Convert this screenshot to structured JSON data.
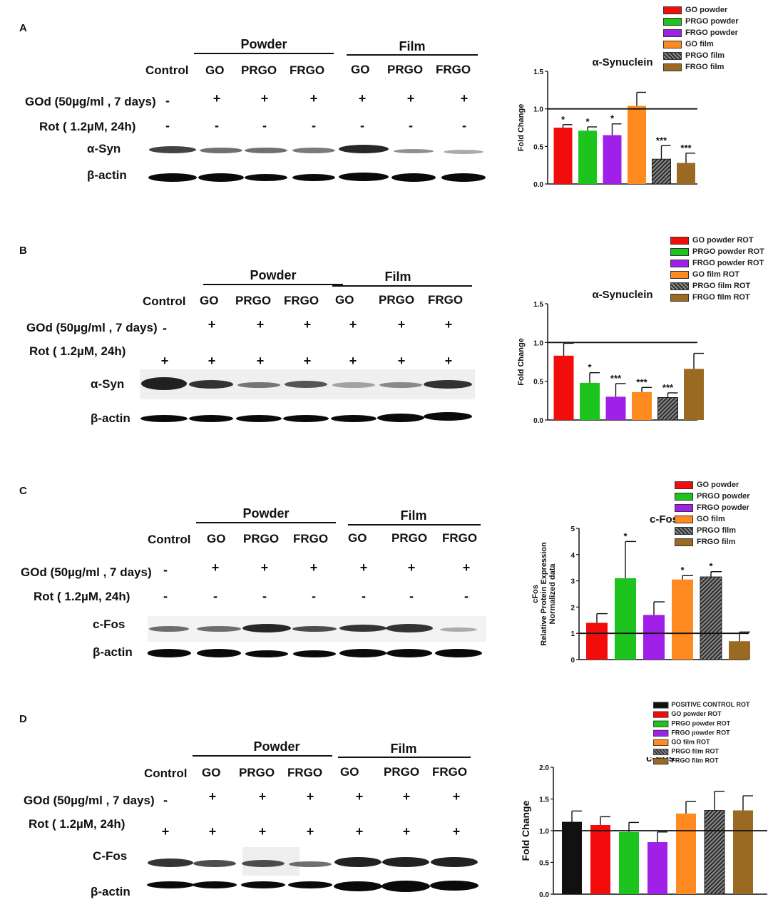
{
  "colors": {
    "red": "#f20c0c",
    "green": "#1ec41e",
    "purple": "#a020e8",
    "orange": "#ff8a1f",
    "dark": "#3a3a3a",
    "brown": "#9b6a22",
    "black": "#111111"
  },
  "panels": [
    {
      "letter": "A",
      "groups": {
        "powder": "Powder",
        "film": "Film"
      },
      "columns": [
        "Control",
        "GO",
        "PRGO",
        "FRGO",
        "GO",
        "PRGO",
        "FRGO"
      ],
      "conditions": [
        {
          "label": "GOd (50µg/ml , 7 days)",
          "signs": [
            "-",
            "+",
            "+",
            "+",
            "+",
            "+",
            "+"
          ]
        },
        {
          "label": "Rot ( 1.2µM, 24h)",
          "signs": [
            "-",
            "-",
            "-",
            "-",
            "-",
            "-",
            "-"
          ]
        }
      ],
      "blots": [
        "α-Syn",
        "β-actin"
      ],
      "legend": [
        {
          "label": "GO powder",
          "color": "red"
        },
        {
          "label": "PRGO powder",
          "color": "green"
        },
        {
          "label": "FRGO powder",
          "color": "purple"
        },
        {
          "label": "GO film",
          "color": "orange"
        },
        {
          "label": "PRGO film",
          "color": "dark"
        },
        {
          "label": "FRGO film",
          "color": "brown"
        }
      ]
    },
    {
      "letter": "B",
      "groups": {
        "powder": "Powder",
        "film": "Film"
      },
      "columns": [
        "Control",
        "GO",
        "PRGO",
        "FRGO",
        "GO",
        "PRGO",
        "FRGO"
      ],
      "conditions": [
        {
          "label": "GOd (50µg/ml , 7 days)",
          "signs": [
            "-",
            "+",
            "+",
            "+",
            "+",
            "+",
            "+"
          ]
        },
        {
          "label": "Rot ( 1.2µM, 24h)",
          "signs": [
            "+",
            "+",
            "+",
            "+",
            "+",
            "+",
            "+"
          ]
        }
      ],
      "blots": [
        "α-Syn",
        "β-actin"
      ],
      "legend": [
        {
          "label": "GO powder ROT",
          "color": "red"
        },
        {
          "label": "PRGO powder ROT",
          "color": "green"
        },
        {
          "label": "FRGO powder ROT",
          "color": "purple"
        },
        {
          "label": "GO film ROT",
          "color": "orange"
        },
        {
          "label": "PRGO film ROT",
          "color": "dark"
        },
        {
          "label": "FRGO film ROT",
          "color": "brown"
        }
      ]
    },
    {
      "letter": "C",
      "groups": {
        "powder": "Powder",
        "film": "Film"
      },
      "columns": [
        "Control",
        "GO",
        "PRGO",
        "FRGO",
        "GO",
        "PRGO",
        "FRGO"
      ],
      "conditions": [
        {
          "label": "GOd (50µg/ml , 7 days)",
          "signs": [
            "-",
            "+",
            "+",
            "+",
            "+",
            "+",
            "+"
          ]
        },
        {
          "label": "Rot ( 1.2µM, 24h)",
          "signs": [
            "-",
            "-",
            "-",
            "-",
            "-",
            "-",
            "-"
          ]
        }
      ],
      "blots": [
        "c-Fos",
        "β-actin"
      ],
      "legend": [
        {
          "label": "GO powder",
          "color": "red"
        },
        {
          "label": "PRGO powder",
          "color": "green"
        },
        {
          "label": "FRGO powder",
          "color": "purple"
        },
        {
          "label": "GO film",
          "color": "orange"
        },
        {
          "label": "PRGO film",
          "color": "dark"
        },
        {
          "label": "FRGO film",
          "color": "brown"
        }
      ]
    },
    {
      "letter": "D",
      "groups": {
        "powder": "Powder",
        "film": "Film"
      },
      "columns": [
        "Control",
        "GO",
        "PRGO",
        "FRGO",
        "GO",
        "PRGO",
        "FRGO"
      ],
      "conditions": [
        {
          "label": "GOd (50µg/ml , 7 days)",
          "signs": [
            "-",
            "+",
            "+",
            "+",
            "+",
            "+",
            "+"
          ]
        },
        {
          "label": "Rot ( 1.2µM, 24h)",
          "signs": [
            "+",
            "+",
            "+",
            "+",
            "+",
            "+",
            "+"
          ]
        }
      ],
      "blots": [
        "C-Fos",
        "β-actin"
      ],
      "legend": [
        {
          "label": "POSITIVE CONTROL  ROT",
          "color": "black"
        },
        {
          "label": "GO powder ROT",
          "color": "red"
        },
        {
          "label": "PRGO powder ROT",
          "color": "green"
        },
        {
          "label": "FRGO powder ROT",
          "color": "purple"
        },
        {
          "label": "GO film ROT",
          "color": "orange"
        },
        {
          "label": "PRGO film ROT",
          "color": "dark"
        },
        {
          "label": "FRGO film ROT",
          "color": "brown"
        }
      ]
    }
  ],
  "chart_data": [
    {
      "type": "bar",
      "title": "α-Synuclein",
      "ylabel": "Fold Change",
      "ylim": [
        0,
        1.5
      ],
      "yticks": [
        "0.0",
        "0.5",
        "1.0",
        "1.5"
      ],
      "reference_line": 1.0,
      "categories": [
        "GO powder",
        "PRGO powder",
        "FRGO powder",
        "GO film",
        "PRGO film",
        "FRGO film"
      ],
      "values": [
        0.75,
        0.71,
        0.65,
        1.04,
        0.33,
        0.28
      ],
      "errors": [
        0.04,
        0.05,
        0.15,
        0.18,
        0.18,
        0.13
      ],
      "significance": [
        "*",
        "*",
        "*",
        "",
        "***",
        "***"
      ],
      "colors": [
        "red",
        "green",
        "purple",
        "orange",
        "dark",
        "brown"
      ]
    },
    {
      "type": "bar",
      "title": "α-Synuclein",
      "ylabel": "Fold Change",
      "ylim": [
        0,
        1.5
      ],
      "yticks": [
        "0.0",
        "0.5",
        "1.0",
        "1.5"
      ],
      "reference_line": 1.0,
      "categories": [
        "GO powder ROT",
        "PRGO powder ROT",
        "FRGO powder ROT",
        "GO film ROT",
        "PRGO film ROT",
        "FRGO film ROT"
      ],
      "values": [
        0.83,
        0.48,
        0.3,
        0.36,
        0.29,
        0.66
      ],
      "errors": [
        0.16,
        0.13,
        0.17,
        0.06,
        0.06,
        0.2
      ],
      "significance": [
        "",
        "*",
        "***",
        "***",
        "***",
        ""
      ],
      "colors": [
        "red",
        "green",
        "purple",
        "orange",
        "dark",
        "brown"
      ]
    },
    {
      "type": "bar",
      "title": "c-Fos",
      "ylabel": "cFos\nRelative Protein Expression\nNormalized data",
      "ylim": [
        0,
        5
      ],
      "yticks": [
        "0",
        "1",
        "2",
        "3",
        "4",
        "5"
      ],
      "reference_line": 1.0,
      "categories": [
        "GO powder",
        "PRGO powder",
        "FRGO powder",
        "GO film",
        "PRGO film",
        "FRGO film"
      ],
      "values": [
        1.4,
        3.1,
        1.7,
        3.05,
        3.15,
        0.7
      ],
      "errors": [
        0.35,
        1.4,
        0.5,
        0.15,
        0.2,
        0.35
      ],
      "significance": [
        "",
        "*",
        "",
        "*",
        "*",
        ""
      ],
      "colors": [
        "red",
        "green",
        "purple",
        "orange",
        "dark",
        "brown"
      ]
    },
    {
      "type": "bar",
      "title": "c-Fos",
      "ylabel": "Fold Change",
      "ylim": [
        0,
        2.0
      ],
      "yticks": [
        "0.0",
        "0.5",
        "1.0",
        "1.5",
        "2.0"
      ],
      "reference_line": 1.0,
      "categories": [
        "POSITIVE CONTROL  ROT",
        "GO powder ROT",
        "PRGO powder ROT",
        "FRGO powder ROT",
        "GO film ROT",
        "PRGO film ROT",
        "FRGO film ROT"
      ],
      "values": [
        1.14,
        1.09,
        0.98,
        0.82,
        1.27,
        1.32,
        1.32
      ],
      "errors": [
        0.17,
        0.13,
        0.15,
        0.16,
        0.19,
        0.3,
        0.23
      ],
      "significance": [
        "",
        "",
        "",
        "",
        "",
        "",
        ""
      ],
      "colors": [
        "black",
        "red",
        "green",
        "purple",
        "orange",
        "dark",
        "brown"
      ]
    }
  ]
}
